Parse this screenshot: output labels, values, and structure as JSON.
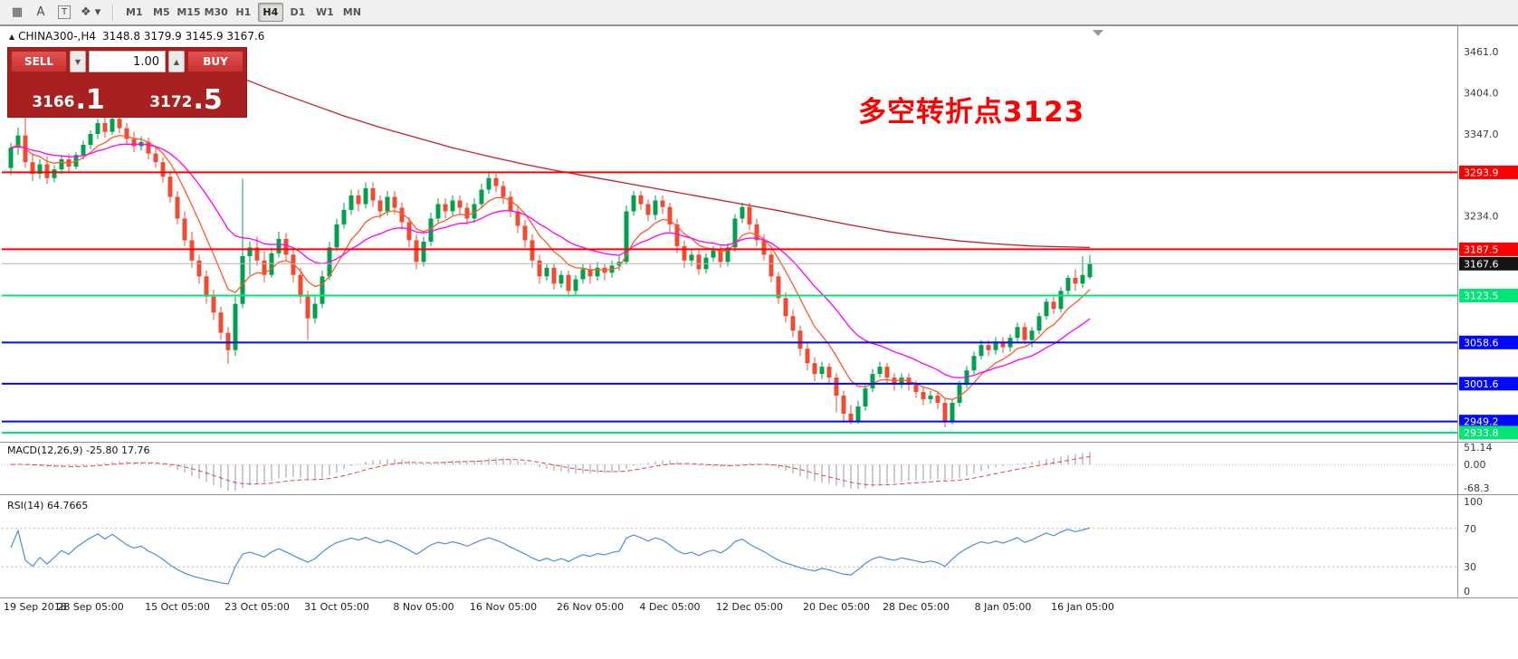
{
  "toolbar": {
    "icons": [
      {
        "name": "chart-templates-icon",
        "glyph": "▦",
        "cls": ""
      },
      {
        "name": "text-style-icon",
        "glyph": "A",
        "cls": ""
      },
      {
        "name": "text-tool-icon",
        "glyph": "T",
        "cls": "boxed"
      },
      {
        "name": "objects-dropdown-icon",
        "glyph": "❖ ▾",
        "cls": ""
      }
    ],
    "timeframes": [
      {
        "label": "M1"
      },
      {
        "label": "M5"
      },
      {
        "label": "M15"
      },
      {
        "label": "M30"
      },
      {
        "label": "H1"
      },
      {
        "label": "H4"
      },
      {
        "label": "D1"
      },
      {
        "label": "W1"
      },
      {
        "label": "MN"
      }
    ],
    "active_timeframe": "H4"
  },
  "chart": {
    "marker": "▲",
    "title_symbol": "CHINA300-,H4",
    "title_ohlc": "3148.8 3179.9 3145.9 3167.6",
    "annotation": {
      "text": "多空转折点3123",
      "color": "#ff0000"
    }
  },
  "trade_panel": {
    "sell_label": "SELL",
    "buy_label": "BUY",
    "volume": "1.00",
    "dropdown_glyph": "▼",
    "up_glyph": "▲",
    "sell_price_main": "3166",
    "sell_price_frac": ".1",
    "buy_price_main": "3172",
    "buy_price_frac": ".5"
  },
  "chart_data": {
    "type": "candlestick",
    "symbol": "CHINA300-",
    "period": "H4",
    "up_color": "#00a24d",
    "down_color": "#f04a32",
    "y_axis": {
      "min": 2922.5,
      "max": 3494.8,
      "plain_ticks": [
        "3461.0",
        "3404.0",
        "3347.0",
        "3234.0"
      ]
    },
    "levels": [
      {
        "price": 3293.9,
        "label": "3293.9",
        "color": "#fe0000",
        "width": 2
      },
      {
        "price": 3187.5,
        "label": "3187.5",
        "color": "#fe0000",
        "width": 2
      },
      {
        "price": 3167.6,
        "label": "3167.6",
        "color": "#b4b4b4",
        "badge": "#151515",
        "width": 1,
        "role": "current-price"
      },
      {
        "price": 3123.5,
        "label": "3123.5",
        "color": "#00e676",
        "width": 2
      },
      {
        "price": 3058.6,
        "label": "3058.6",
        "color": "#0008ff",
        "width": 2
      },
      {
        "price": 3001.6,
        "label": "3001.6",
        "color": "#0008ff",
        "width": 2
      },
      {
        "price": 2949.2,
        "label": "2949.2",
        "color": "#0008ff",
        "width": 2
      },
      {
        "price": 2933.8,
        "label": "2933.8",
        "color": "#00e676",
        "width": 2
      }
    ],
    "moving_averages": [
      {
        "name": "ma-fast",
        "color": "#ff5a26",
        "type": "ema",
        "period": 8
      },
      {
        "name": "ma-mid",
        "color": "#ff00ff",
        "type": "ema",
        "period": 21
      },
      {
        "name": "ma-slow",
        "color": "#c21f30",
        "type": "points",
        "points": [
          [
            31,
            3428
          ],
          [
            36,
            3408
          ],
          [
            41,
            3390
          ],
          [
            46,
            3372
          ],
          [
            51,
            3356
          ],
          [
            56,
            3342
          ],
          [
            61,
            3328
          ],
          [
            66,
            3316
          ],
          [
            71,
            3305
          ],
          [
            76,
            3295
          ],
          [
            81,
            3286
          ],
          [
            86,
            3277
          ],
          [
            91,
            3268
          ],
          [
            96,
            3259
          ],
          [
            101,
            3250
          ],
          [
            106,
            3241
          ],
          [
            111,
            3231
          ],
          [
            116,
            3221
          ],
          [
            121,
            3212
          ],
          [
            126,
            3205
          ],
          [
            131,
            3199
          ],
          [
            136,
            3195
          ],
          [
            141,
            3192
          ],
          [
            145,
            3191
          ],
          [
            149,
            3190
          ]
        ]
      }
    ],
    "candles": [
      [
        3300,
        3335,
        3290,
        3328
      ],
      [
        3328,
        3356,
        3318,
        3345
      ],
      [
        3345,
        3398,
        3300,
        3308
      ],
      [
        3308,
        3320,
        3282,
        3292
      ],
      [
        3292,
        3312,
        3285,
        3305
      ],
      [
        3305,
        3316,
        3278,
        3286
      ],
      [
        3286,
        3304,
        3280,
        3298
      ],
      [
        3298,
        3318,
        3292,
        3312
      ],
      [
        3312,
        3320,
        3294,
        3302
      ],
      [
        3302,
        3322,
        3298,
        3318
      ],
      [
        3318,
        3338,
        3312,
        3332
      ],
      [
        3332,
        3352,
        3326,
        3347
      ],
      [
        3347,
        3368,
        3340,
        3362
      ],
      [
        3362,
        3370,
        3342,
        3350
      ],
      [
        3350,
        3378,
        3346,
        3368
      ],
      [
        3368,
        3375,
        3348,
        3355
      ],
      [
        3355,
        3362,
        3332,
        3340
      ],
      [
        3340,
        3350,
        3322,
        3330
      ],
      [
        3330,
        3344,
        3324,
        3336
      ],
      [
        3336,
        3342,
        3312,
        3320
      ],
      [
        3320,
        3330,
        3300,
        3308
      ],
      [
        3308,
        3315,
        3280,
        3288
      ],
      [
        3288,
        3296,
        3252,
        3260
      ],
      [
        3260,
        3268,
        3222,
        3230
      ],
      [
        3230,
        3240,
        3192,
        3200
      ],
      [
        3200,
        3212,
        3162,
        3172
      ],
      [
        3172,
        3180,
        3140,
        3150
      ],
      [
        3150,
        3158,
        3112,
        3122
      ],
      [
        3122,
        3132,
        3090,
        3100
      ],
      [
        3100,
        3108,
        3062,
        3072
      ],
      [
        3072,
        3080,
        3029,
        3048
      ],
      [
        3048,
        3122,
        3040,
        3112
      ],
      [
        3112,
        3285,
        3106,
        3178
      ],
      [
        3178,
        3198,
        3152,
        3190
      ],
      [
        3190,
        3205,
        3165,
        3172
      ],
      [
        3172,
        3185,
        3142,
        3152
      ],
      [
        3152,
        3190,
        3148,
        3182
      ],
      [
        3182,
        3212,
        3176,
        3202
      ],
      [
        3202,
        3210,
        3172,
        3180
      ],
      [
        3180,
        3188,
        3142,
        3152
      ],
      [
        3152,
        3162,
        3112,
        3122
      ],
      [
        3122,
        3130,
        3062,
        3092
      ],
      [
        3092,
        3122,
        3085,
        3112
      ],
      [
        3112,
        3158,
        3106,
        3150
      ],
      [
        3150,
        3198,
        3145,
        3190
      ],
      [
        3190,
        3230,
        3185,
        3222
      ],
      [
        3222,
        3252,
        3216,
        3242
      ],
      [
        3242,
        3270,
        3235,
        3262
      ],
      [
        3262,
        3270,
        3240,
        3250
      ],
      [
        3250,
        3280,
        3244,
        3272
      ],
      [
        3272,
        3280,
        3246,
        3255
      ],
      [
        3255,
        3262,
        3230,
        3240
      ],
      [
        3240,
        3268,
        3234,
        3260
      ],
      [
        3260,
        3268,
        3236,
        3245
      ],
      [
        3245,
        3252,
        3215,
        3225
      ],
      [
        3225,
        3232,
        3190,
        3200
      ],
      [
        3200,
        3208,
        3160,
        3170
      ],
      [
        3170,
        3205,
        3164,
        3198
      ],
      [
        3198,
        3238,
        3192,
        3230
      ],
      [
        3230,
        3258,
        3224,
        3250
      ],
      [
        3250,
        3258,
        3230,
        3240
      ],
      [
        3240,
        3262,
        3234,
        3255
      ],
      [
        3255,
        3262,
        3236,
        3245
      ],
      [
        3245,
        3252,
        3222,
        3230
      ],
      [
        3230,
        3258,
        3224,
        3250
      ],
      [
        3250,
        3278,
        3244,
        3270
      ],
      [
        3270,
        3295,
        3264,
        3286
      ],
      [
        3286,
        3292,
        3266,
        3275
      ],
      [
        3275,
        3282,
        3250,
        3260
      ],
      [
        3260,
        3268,
        3232,
        3240
      ],
      [
        3240,
        3248,
        3210,
        3220
      ],
      [
        3220,
        3228,
        3190,
        3200
      ],
      [
        3200,
        3208,
        3162,
        3172
      ],
      [
        3172,
        3180,
        3140,
        3150
      ],
      [
        3150,
        3168,
        3144,
        3162
      ],
      [
        3162,
        3168,
        3132,
        3140
      ],
      [
        3140,
        3158,
        3134,
        3152
      ],
      [
        3152,
        3158,
        3122,
        3130
      ],
      [
        3130,
        3152,
        3124,
        3146
      ],
      [
        3146,
        3168,
        3140,
        3160
      ],
      [
        3160,
        3168,
        3140,
        3150
      ],
      [
        3150,
        3170,
        3144,
        3162
      ],
      [
        3162,
        3168,
        3144,
        3155
      ],
      [
        3155,
        3172,
        3148,
        3165
      ],
      [
        3165,
        3178,
        3158,
        3170
      ],
      [
        3170,
        3248,
        3166,
        3240
      ],
      [
        3240,
        3268,
        3234,
        3262
      ],
      [
        3262,
        3268,
        3242,
        3250
      ],
      [
        3250,
        3256,
        3226,
        3235
      ],
      [
        3235,
        3262,
        3228,
        3255
      ],
      [
        3255,
        3262,
        3236,
        3246
      ],
      [
        3246,
        3252,
        3212,
        3222
      ],
      [
        3222,
        3230,
        3182,
        3192
      ],
      [
        3192,
        3200,
        3162,
        3172
      ],
      [
        3172,
        3188,
        3164,
        3180
      ],
      [
        3180,
        3186,
        3152,
        3160
      ],
      [
        3160,
        3182,
        3154,
        3176
      ],
      [
        3176,
        3192,
        3170,
        3186
      ],
      [
        3186,
        3192,
        3162,
        3170
      ],
      [
        3170,
        3196,
        3164,
        3190
      ],
      [
        3190,
        3236,
        3184,
        3230
      ],
      [
        3230,
        3252,
        3224,
        3246
      ],
      [
        3246,
        3252,
        3214,
        3222
      ],
      [
        3222,
        3230,
        3192,
        3200
      ],
      [
        3200,
        3208,
        3172,
        3180
      ],
      [
        3180,
        3186,
        3142,
        3150
      ],
      [
        3150,
        3156,
        3112,
        3120
      ],
      [
        3120,
        3128,
        3086,
        3095
      ],
      [
        3095,
        3104,
        3066,
        3075
      ],
      [
        3075,
        3082,
        3040,
        3050
      ],
      [
        3050,
        3058,
        3020,
        3030
      ],
      [
        3030,
        3038,
        3005,
        3015
      ],
      [
        3015,
        3032,
        3008,
        3025
      ],
      [
        3025,
        3030,
        3000,
        3010
      ],
      [
        3010,
        3016,
        2962,
        2985
      ],
      [
        2985,
        2992,
        2948,
        2960
      ],
      [
        2960,
        2972,
        2945,
        2950
      ],
      [
        2950,
        2978,
        2946,
        2970
      ],
      [
        2970,
        3000,
        2964,
        2995
      ],
      [
        2995,
        3022,
        2990,
        3015
      ],
      [
        3015,
        3032,
        3010,
        3025
      ],
      [
        3025,
        3030,
        3002,
        3010
      ],
      [
        3010,
        3016,
        2992,
        3000
      ],
      [
        3000,
        3016,
        2995,
        3010
      ],
      [
        3010,
        3016,
        2992,
        3000
      ],
      [
        3000,
        3006,
        2982,
        2990
      ],
      [
        2990,
        2996,
        2972,
        2980
      ],
      [
        2980,
        2992,
        2974,
        2985
      ],
      [
        2985,
        2990,
        2966,
        2975
      ],
      [
        2975,
        2982,
        2941,
        2950
      ],
      [
        2950,
        2980,
        2945,
        2975
      ],
      [
        2975,
        3006,
        2970,
        3000
      ],
      [
        3000,
        3026,
        2995,
        3020
      ],
      [
        3020,
        3046,
        3015,
        3040
      ],
      [
        3040,
        3062,
        3035,
        3055
      ],
      [
        3055,
        3062,
        3040,
        3048
      ],
      [
        3048,
        3066,
        3042,
        3060
      ],
      [
        3060,
        3066,
        3044,
        3052
      ],
      [
        3052,
        3070,
        3046,
        3065
      ],
      [
        3065,
        3086,
        3060,
        3080
      ],
      [
        3080,
        3086,
        3056,
        3062
      ],
      [
        3062,
        3080,
        3052,
        3075
      ],
      [
        3075,
        3100,
        3070,
        3095
      ],
      [
        3095,
        3120,
        3090,
        3115
      ],
      [
        3115,
        3122,
        3098,
        3105
      ],
      [
        3105,
        3135,
        3100,
        3130
      ],
      [
        3130,
        3152,
        3125,
        3148
      ],
      [
        3148,
        3160,
        3130,
        3140
      ],
      [
        3140,
        3178,
        3134,
        3152
      ],
      [
        3148.8,
        3179.9,
        3145.9,
        3167.6
      ]
    ],
    "macd": {
      "label": "MACD(12,26,9) -25.80 17.76",
      "params": [
        12,
        26,
        9
      ],
      "axis": [
        "51.14",
        "0.00",
        "-68.3"
      ],
      "histogram_color": "#9a9a9a",
      "signal_color": "#e04545"
    },
    "rsi": {
      "label": "RSI(14) 64.7665",
      "period": 14,
      "value": 64.7665,
      "axis": [
        "100",
        "70",
        "30",
        "0"
      ],
      "levels": [
        70,
        30
      ],
      "color": "#4f8fd8"
    },
    "x_axis": {
      "labels": [
        {
          "text": "19 Sep 2018",
          "bar": 0
        },
        {
          "text": "28 Sep 05:00",
          "bar": 11
        },
        {
          "text": "15 Oct 05:00",
          "bar": 23
        },
        {
          "text": "23 Oct 05:00",
          "bar": 34
        },
        {
          "text": "31 Oct 05:00",
          "bar": 45
        },
        {
          "text": "8 Nov 05:00",
          "bar": 57
        },
        {
          "text": "16 Nov 05:00",
          "bar": 68
        },
        {
          "text": "26 Nov 05:00",
          "bar": 80
        },
        {
          "text": "4 Dec 05:00",
          "bar": 91
        },
        {
          "text": "12 Dec 05:00",
          "bar": 102
        },
        {
          "text": "20 Dec 05:00",
          "bar": 114
        },
        {
          "text": "28 Dec 05:00",
          "bar": 125
        },
        {
          "text": "8 Jan 05:00",
          "bar": 137
        },
        {
          "text": "16 Jan 05:00",
          "bar": 148
        }
      ]
    }
  }
}
